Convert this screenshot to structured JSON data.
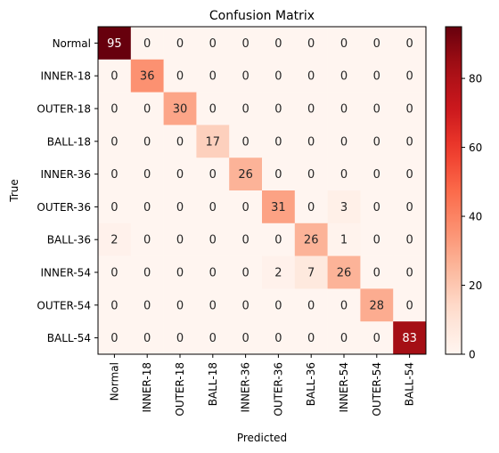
{
  "chart_data": {
    "type": "heatmap",
    "title": "Confusion Matrix",
    "xlabel": "Predicted",
    "ylabel": "True",
    "labels": [
      "Normal",
      "INNER-18",
      "OUTER-18",
      "BALL-18",
      "INNER-36",
      "OUTER-36",
      "BALL-36",
      "INNER-54",
      "OUTER-54",
      "BALL-54"
    ],
    "matrix": [
      [
        95,
        0,
        0,
        0,
        0,
        0,
        0,
        0,
        0,
        0
      ],
      [
        0,
        36,
        0,
        0,
        0,
        0,
        0,
        0,
        0,
        0
      ],
      [
        0,
        0,
        30,
        0,
        0,
        0,
        0,
        0,
        0,
        0
      ],
      [
        0,
        0,
        0,
        17,
        0,
        0,
        0,
        0,
        0,
        0
      ],
      [
        0,
        0,
        0,
        0,
        26,
        0,
        0,
        0,
        0,
        0
      ],
      [
        0,
        0,
        0,
        0,
        0,
        31,
        0,
        3,
        0,
        0
      ],
      [
        2,
        0,
        0,
        0,
        0,
        0,
        26,
        1,
        0,
        0
      ],
      [
        0,
        0,
        0,
        0,
        0,
        2,
        7,
        26,
        0,
        0
      ],
      [
        0,
        0,
        0,
        0,
        0,
        0,
        0,
        0,
        28,
        0
      ],
      [
        0,
        0,
        0,
        0,
        0,
        0,
        0,
        0,
        0,
        83
      ]
    ],
    "colorbar": {
      "min": 0,
      "max": 95,
      "ticks": [
        0,
        20,
        40,
        60,
        80
      ]
    },
    "colormap": "Reds",
    "colors": {
      "low": "#fff5f0",
      "high": "#67000d"
    }
  }
}
